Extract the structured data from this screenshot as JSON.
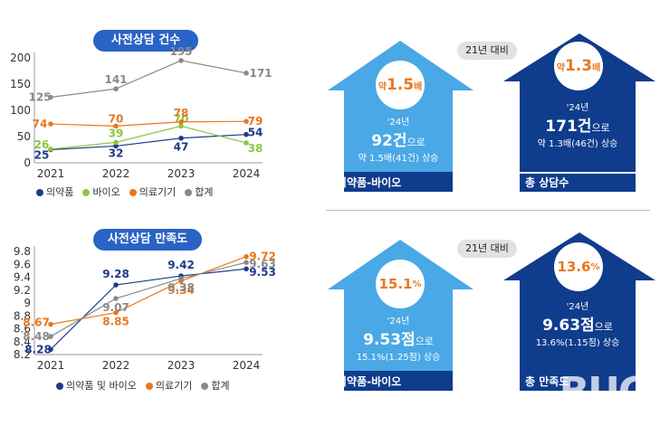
{
  "chart_data": [
    {
      "type": "line",
      "title": "사전상담 건수",
      "categories": [
        "2021",
        "2022",
        "2023",
        "2024"
      ],
      "ylim": [
        0,
        200
      ],
      "yticks": [
        0,
        50,
        100,
        150,
        200
      ],
      "series": [
        {
          "name": "의약품",
          "color": "#1f3a8a",
          "values": [
            25,
            32,
            47,
            54
          ]
        },
        {
          "name": "바이오",
          "color": "#8cc63f",
          "values": [
            26,
            39,
            70,
            38
          ]
        },
        {
          "name": "의료기기",
          "color": "#e8771f",
          "values": [
            74,
            70,
            78,
            79
          ]
        },
        {
          "name": "합계",
          "color": "#8a8a8a",
          "values": [
            125,
            141,
            195,
            171
          ]
        }
      ]
    },
    {
      "type": "line",
      "title": "사전상담 만족도",
      "categories": [
        "2021",
        "2022",
        "2023",
        "2024"
      ],
      "ylim": [
        8.2,
        9.8
      ],
      "yticks": [
        "8.2",
        "8.4",
        "8.6",
        "8.8",
        "9",
        "9.2",
        "9.4",
        "9.6",
        "9.8"
      ],
      "series": [
        {
          "name": "의약품 및 바이오",
          "color": "#1f3a8a",
          "values": [
            8.28,
            9.28,
            9.42,
            9.53
          ]
        },
        {
          "name": "의료기기",
          "color": "#e8771f",
          "values": [
            8.67,
            8.85,
            9.34,
            9.72
          ]
        },
        {
          "name": "합계",
          "color": "#8a8a8a",
          "values": [
            8.48,
            9.07,
            9.38,
            9.63
          ]
        }
      ]
    }
  ],
  "top": {
    "compare": "21년 대비",
    "left": {
      "circle_pre": "약",
      "circle_big": "1.5",
      "circle_post": "배",
      "year": "'24년",
      "value": "92건",
      "suffix": "으로",
      "sub": "약 1.5배(41건) 상승",
      "label": "의약품-바이오"
    },
    "right": {
      "circle_pre": "약",
      "circle_big": "1.3",
      "circle_post": "배",
      "year": "'24년",
      "value": "171건",
      "suffix": "으로",
      "sub": "약 1.3배(46건) 상승",
      "label": "총 상담수"
    }
  },
  "bottom": {
    "compare": "21년 대비",
    "left": {
      "circle_big": "15.1",
      "circle_post": "%",
      "year": "'24년",
      "value": "9.53점",
      "suffix": "으로",
      "sub": "15.1%(1.25점) 상승",
      "label": "의약품-바이오"
    },
    "right": {
      "circle_big": "13.6",
      "circle_post": "%",
      "year": "'24년",
      "value": "9.63점",
      "suffix": "으로",
      "sub": "13.6%(1.15점) 상승",
      "label": "총 만족도"
    }
  },
  "watermark": "BUG",
  "colors": {
    "accent": "#2a63c6",
    "light_house": "#4aa8e6",
    "dark_house": "#0f3c8c",
    "orange": "#e8771f"
  }
}
